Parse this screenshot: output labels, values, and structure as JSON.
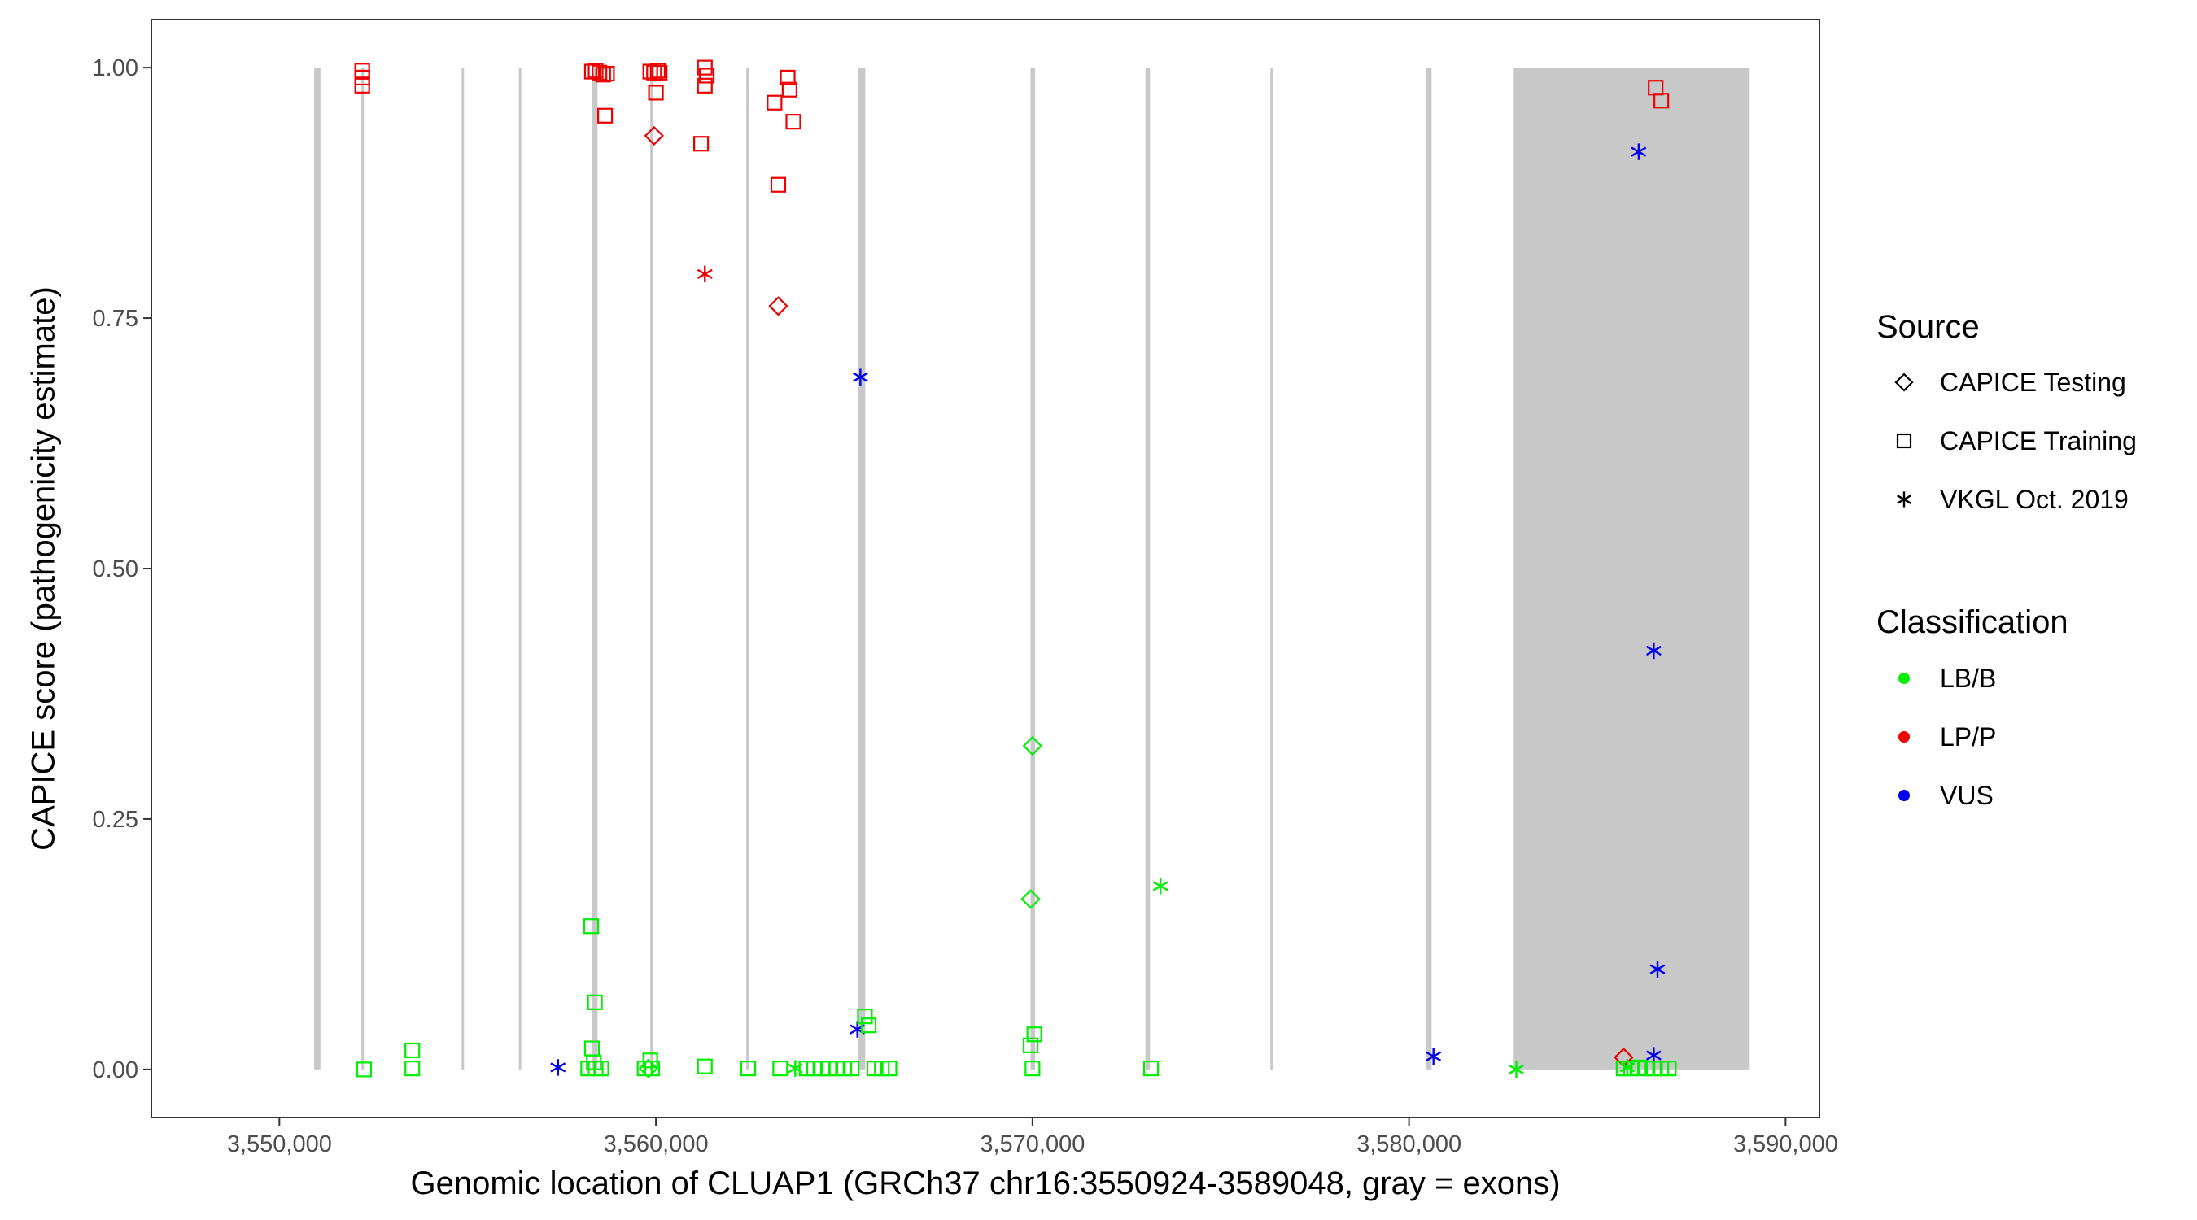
{
  "chart_data": {
    "type": "scatter",
    "title": "",
    "xlabel": "Genomic location of CLUAP1 (GRCh37 chr16:3550924-3589048, gray = exons)",
    "ylabel": "CAPICE score (pathogenicity estimate)",
    "xlim": [
      3546600,
      3590900
    ],
    "ylim": [
      -0.048,
      1.048
    ],
    "x_ticks": [
      3550000,
      3560000,
      3570000,
      3580000,
      3590000
    ],
    "x_tick_labels": [
      "3,550,000",
      "3,560,000",
      "3,570,000",
      "3,580,000",
      "3,590,000"
    ],
    "y_ticks": [
      0,
      0.25,
      0.5,
      0.75,
      1.0
    ],
    "y_tick_labels": [
      "0.00",
      "0.25",
      "0.50",
      "0.75",
      "1.00"
    ],
    "grid": false,
    "legend_position": "right",
    "exons": [
      [
        3550924,
        3551090
      ],
      [
        3552180,
        3552220
      ],
      [
        3554840,
        3554890
      ],
      [
        3556360,
        3556410
      ],
      [
        3558300,
        3558450
      ],
      [
        3559850,
        3559920
      ],
      [
        3562400,
        3562460
      ],
      [
        3565380,
        3565560
      ],
      [
        3569950,
        3570070
      ],
      [
        3573000,
        3573120
      ],
      [
        3576320,
        3576380
      ],
      [
        3580450,
        3580600
      ],
      [
        3582780,
        3589048
      ]
    ],
    "exon_color": "#c8c8c8",
    "legends": {
      "source": {
        "title": "Source",
        "entries": [
          {
            "label": "CAPICE Testing",
            "shape": "diamond"
          },
          {
            "label": "CAPICE Training",
            "shape": "square"
          },
          {
            "label": "VKGL Oct. 2019",
            "shape": "asterisk"
          }
        ]
      },
      "classification": {
        "title": "Classification",
        "entries": [
          {
            "label": "LB/B",
            "color": "#00ee00"
          },
          {
            "label": "LP/P",
            "color": "#ee0000"
          },
          {
            "label": "VUS",
            "color": "#0000ee"
          }
        ]
      }
    },
    "series": [
      {
        "source": "CAPICE Training",
        "classification": "LP/P",
        "points": [
          [
            3552200,
            0.997
          ],
          [
            3552200,
            0.99
          ],
          [
            3552200,
            0.982
          ],
          [
            3558300,
            0.996
          ],
          [
            3558400,
            0.997
          ],
          [
            3558500,
            0.995
          ],
          [
            3558600,
            0.993
          ],
          [
            3558700,
            0.994
          ],
          [
            3558650,
            0.952
          ],
          [
            3559850,
            0.996
          ],
          [
            3559950,
            0.995
          ],
          [
            3560050,
            0.997
          ],
          [
            3560100,
            0.995
          ],
          [
            3560000,
            0.975
          ],
          [
            3561300,
            1.0
          ],
          [
            3561350,
            0.992
          ],
          [
            3561300,
            0.982
          ],
          [
            3561200,
            0.924
          ],
          [
            3563150,
            0.965
          ],
          [
            3563500,
            0.99
          ],
          [
            3563550,
            0.978
          ],
          [
            3563650,
            0.946
          ],
          [
            3563250,
            0.883
          ],
          [
            3586550,
            0.98
          ],
          [
            3586700,
            0.967
          ]
        ]
      },
      {
        "source": "CAPICE Testing",
        "classification": "LP/P",
        "points": [
          [
            3559950,
            0.932
          ],
          [
            3563250,
            0.762
          ],
          [
            3585700,
            0.012
          ]
        ]
      },
      {
        "source": "VKGL Oct. 2019",
        "classification": "LP/P",
        "points": [
          [
            3561300,
            0.794
          ]
        ]
      },
      {
        "source": "VKGL Oct. 2019",
        "classification": "VUS",
        "points": [
          [
            3586100,
            0.916
          ],
          [
            3565430,
            0.691
          ],
          [
            3586500,
            0.418
          ],
          [
            3586600,
            0.1
          ],
          [
            3557400,
            0.002
          ],
          [
            3565350,
            0.04
          ],
          [
            3580650,
            0.013
          ],
          [
            3586500,
            0.014
          ]
        ]
      },
      {
        "source": "CAPICE Training",
        "classification": "LB/B",
        "points": [
          [
            3552250,
            0.0
          ],
          [
            3553530,
            0.019
          ],
          [
            3553530,
            0.001
          ],
          [
            3558280,
            0.143
          ],
          [
            3558380,
            0.067
          ],
          [
            3558300,
            0.021
          ],
          [
            3558350,
            0.007
          ],
          [
            3558200,
            0.001
          ],
          [
            3558400,
            0.001
          ],
          [
            3558550,
            0.001
          ],
          [
            3559700,
            0.001
          ],
          [
            3559850,
            0.009
          ],
          [
            3559900,
            0.001
          ],
          [
            3561300,
            0.003
          ],
          [
            3562450,
            0.001
          ],
          [
            3563300,
            0.001
          ],
          [
            3564000,
            0.001
          ],
          [
            3564200,
            0.001
          ],
          [
            3564400,
            0.001
          ],
          [
            3564600,
            0.001
          ],
          [
            3564800,
            0.001
          ],
          [
            3565000,
            0.001
          ],
          [
            3565200,
            0.001
          ],
          [
            3565550,
            0.053
          ],
          [
            3565650,
            0.044
          ],
          [
            3565800,
            0.001
          ],
          [
            3566000,
            0.001
          ],
          [
            3566200,
            0.001
          ],
          [
            3569950,
            0.024
          ],
          [
            3570050,
            0.035
          ],
          [
            3570000,
            0.001
          ],
          [
            3573150,
            0.001
          ],
          [
            3585700,
            0.001
          ],
          [
            3585900,
            0.001
          ],
          [
            3586100,
            0.002
          ],
          [
            3586300,
            0.001
          ],
          [
            3586500,
            0.001
          ],
          [
            3586700,
            0.001
          ],
          [
            3586900,
            0.001
          ]
        ]
      },
      {
        "source": "CAPICE Testing",
        "classification": "LB/B",
        "points": [
          [
            3570000,
            0.323
          ],
          [
            3569950,
            0.17
          ],
          [
            3559800,
            0.001
          ]
        ]
      },
      {
        "source": "VKGL Oct. 2019",
        "classification": "LB/B",
        "points": [
          [
            3573400,
            0.183
          ],
          [
            3582850,
            0.0
          ],
          [
            3563700,
            0.001
          ],
          [
            3585800,
            0.002
          ]
        ]
      }
    ]
  }
}
